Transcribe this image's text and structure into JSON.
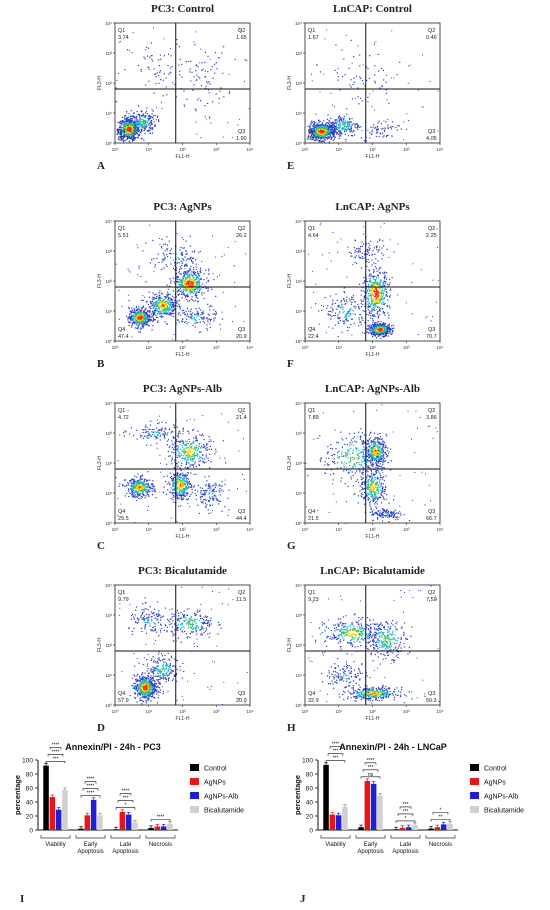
{
  "flow_panels": [
    {
      "id": "A",
      "title": "PC3: Control",
      "letter": "A",
      "q1": "3.74",
      "q2": "1.65",
      "q3": "1.90",
      "q4": "92.7",
      "pattern": "control_pc3"
    },
    {
      "id": "E",
      "title": "LnCAP: Control",
      "letter": "E",
      "q1": "1.67",
      "q2": "0.46",
      "q3": "4.05",
      "q4": "93.8",
      "pattern": "control_lncap"
    },
    {
      "id": "B",
      "title": "PC3: AgNPs",
      "letter": "B",
      "q1": "5.51",
      "q2": "26.2",
      "q3": "20.9",
      "q4": "47.4",
      "pattern": "pc3_agnp"
    },
    {
      "id": "F",
      "title": "LnCAP: AgNPs",
      "letter": "F",
      "q1": "4.64",
      "q2": "2.25",
      "q3": "70.7",
      "q4": "22.4",
      "pattern": "lncap_agnp"
    },
    {
      "id": "C",
      "title": "PC3: AgNPs-Alb",
      "letter": "C",
      "q1": "4.72",
      "q2": "21.4",
      "q3": "44.4",
      "q4": "29.5",
      "pattern": "pc3_alb"
    },
    {
      "id": "G",
      "title": "LnCAP: AgNPs-Alb",
      "letter": "G",
      "q1": "7.89",
      "q2": "3.86",
      "q3": "66.7",
      "q4": "21.5",
      "pattern": "lncap_alb"
    },
    {
      "id": "D",
      "title": "PC3: Bicalutamide",
      "letter": "D",
      "q1": "9.79",
      "q2": "11.5",
      "q3": "20.9",
      "q4": "57.9",
      "pattern": "pc3_bic"
    },
    {
      "id": "H",
      "title": "LnCAP: Bicalutamide",
      "letter": "H",
      "q1": "9.23",
      "q2": "7.59",
      "q3": "50.3",
      "q4": "32.9",
      "pattern": "lncap_bic"
    }
  ],
  "flow_axes": {
    "xlabel": "FL1-H",
    "ylabel": "FL3-H",
    "x_ticks": [
      "10⁰",
      "10¹",
      "10²",
      "10³",
      "10⁴"
    ],
    "y_ticks": [
      "10⁰",
      "10¹",
      "10²",
      "10³",
      "10⁴"
    ],
    "quadrant_labels": [
      "Q1",
      "Q2",
      "Q3",
      "Q4"
    ]
  },
  "chart_data": [
    {
      "type": "bar",
      "letter": "I",
      "title": "Annexin/PI - 24h - PC3",
      "ylabel": "percentage",
      "ylim": [
        0,
        100
      ],
      "yticks": [
        0,
        20,
        40,
        60,
        80,
        100
      ],
      "categories": [
        "Viability",
        "Early Apoptosis",
        "Late Apoptosis",
        "Necrosis"
      ],
      "series": [
        {
          "name": "Control",
          "color": "#000000",
          "values": [
            92,
            2,
            1,
            3
          ]
        },
        {
          "name": "AgNPs",
          "color": "#e8141a",
          "values": [
            47,
            21,
            26,
            5
          ]
        },
        {
          "name": "AgNPs-Alb",
          "color": "#1f1fd6",
          "values": [
            29,
            43,
            22,
            5
          ]
        },
        {
          "name": "Bicalutamide",
          "color": "#d0d0d0",
          "values": [
            57,
            21,
            11,
            9
          ]
        }
      ],
      "sig_labels": [
        "***",
        "****",
        "****",
        "****",
        "****",
        "****",
        "*",
        "***",
        "****",
        "****"
      ]
    },
    {
      "type": "bar",
      "letter": "J",
      "title": "Annexin/PI - 24h - LNCaP",
      "ylabel": "percentage",
      "ylim": [
        0,
        100
      ],
      "yticks": [
        0,
        20,
        40,
        60,
        80,
        100
      ],
      "categories": [
        "Viability",
        "Early Apoptosis",
        "Late Apoptosis",
        "Necrosis"
      ],
      "series": [
        {
          "name": "Control",
          "color": "#000000",
          "values": [
            93,
            4,
            1,
            2
          ]
        },
        {
          "name": "AgNPs",
          "color": "#e8141a",
          "values": [
            22,
            70,
            3,
            4
          ]
        },
        {
          "name": "AgNPs-Alb",
          "color": "#1f1fd6",
          "values": [
            21,
            66,
            4,
            8
          ]
        },
        {
          "name": "Bicalutamide",
          "color": "#d0d0d0",
          "values": [
            33,
            49,
            7,
            9
          ]
        }
      ],
      "sig_labels": [
        "***",
        "***",
        "****",
        "ns",
        "***",
        "****",
        "*",
        "***",
        "***",
        "**",
        "*"
      ]
    }
  ]
}
